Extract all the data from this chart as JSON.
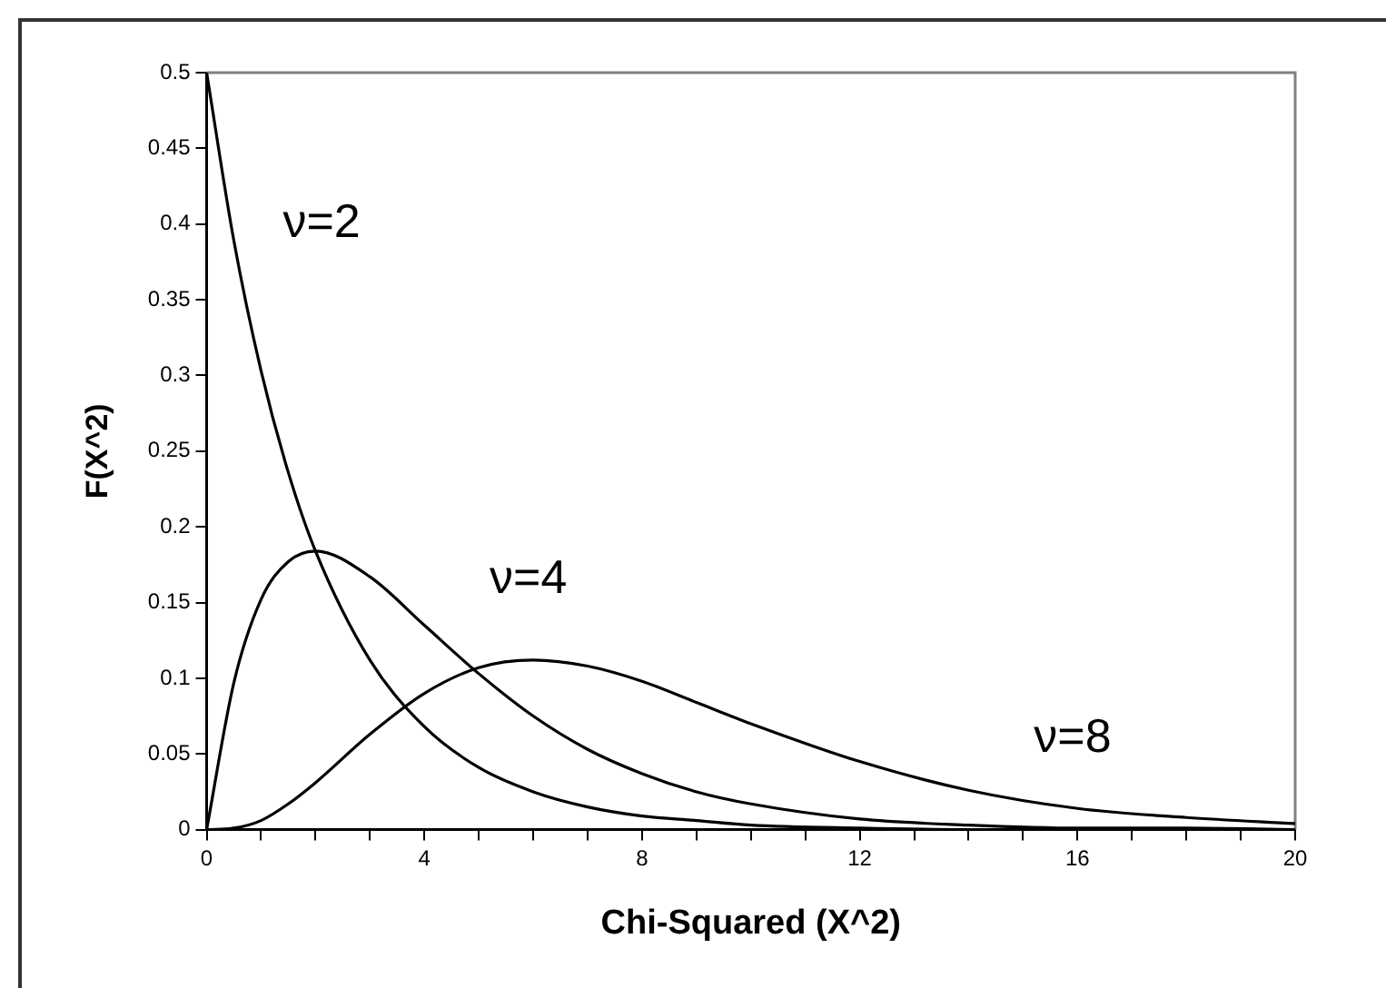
{
  "chart_data": {
    "type": "line",
    "xlabel": "Chi-Squared (X^2)",
    "ylabel": "F(X^2)",
    "x": [
      0,
      0.5,
      1,
      1.5,
      2,
      3,
      4,
      5,
      6,
      7,
      8,
      9,
      10,
      12,
      14,
      16,
      18,
      20
    ],
    "series": [
      {
        "name": "ν=2",
        "color": "#000000",
        "values": [
          0.5,
          0.389,
          0.303,
          0.236,
          0.184,
          0.112,
          0.068,
          0.041,
          0.025,
          0.015,
          0.009,
          0.006,
          0.003,
          0.001,
          0,
          0,
          0,
          0
        ]
      },
      {
        "name": "ν=4",
        "color": "#000000",
        "values": [
          0,
          0.097,
          0.152,
          0.177,
          0.184,
          0.167,
          0.135,
          0.103,
          0.075,
          0.053,
          0.037,
          0.025,
          0.017,
          0.007,
          0.003,
          0.001,
          0.001,
          0
        ]
      },
      {
        "name": "ν=8",
        "color": "#000000",
        "values": [
          0,
          0.001,
          0.006,
          0.017,
          0.031,
          0.063,
          0.09,
          0.107,
          0.112,
          0.108,
          0.098,
          0.084,
          0.07,
          0.045,
          0.026,
          0.014,
          0.008,
          0.004
        ]
      }
    ],
    "xlim": [
      0,
      20
    ],
    "xticks": [
      0,
      {
        "value": 1,
        "label": null
      },
      {
        "value": 2,
        "label": null
      },
      {
        "value": 3,
        "label": null
      },
      4,
      {
        "value": 5,
        "label": null
      },
      {
        "value": 6,
        "label": null
      },
      {
        "value": 7,
        "label": null
      },
      8,
      {
        "value": 9,
        "label": null
      },
      {
        "value": 10,
        "label": null
      },
      {
        "value": 11,
        "label": null
      },
      12,
      {
        "value": 13,
        "label": null
      },
      {
        "value": 14,
        "label": null
      },
      {
        "value": 15,
        "label": null
      },
      16,
      {
        "value": 17,
        "label": null
      },
      {
        "value": 18,
        "label": null
      },
      {
        "value": 19,
        "label": null
      },
      20
    ],
    "ylim": [
      0,
      0.5
    ],
    "yticks": [
      0,
      0.05,
      0.1,
      0.15,
      0.2,
      0.25,
      0.3,
      0.35,
      0.4,
      0.45,
      0.5
    ],
    "grid": false,
    "legend": false,
    "marker": "none",
    "line_style": "solid"
  }
}
